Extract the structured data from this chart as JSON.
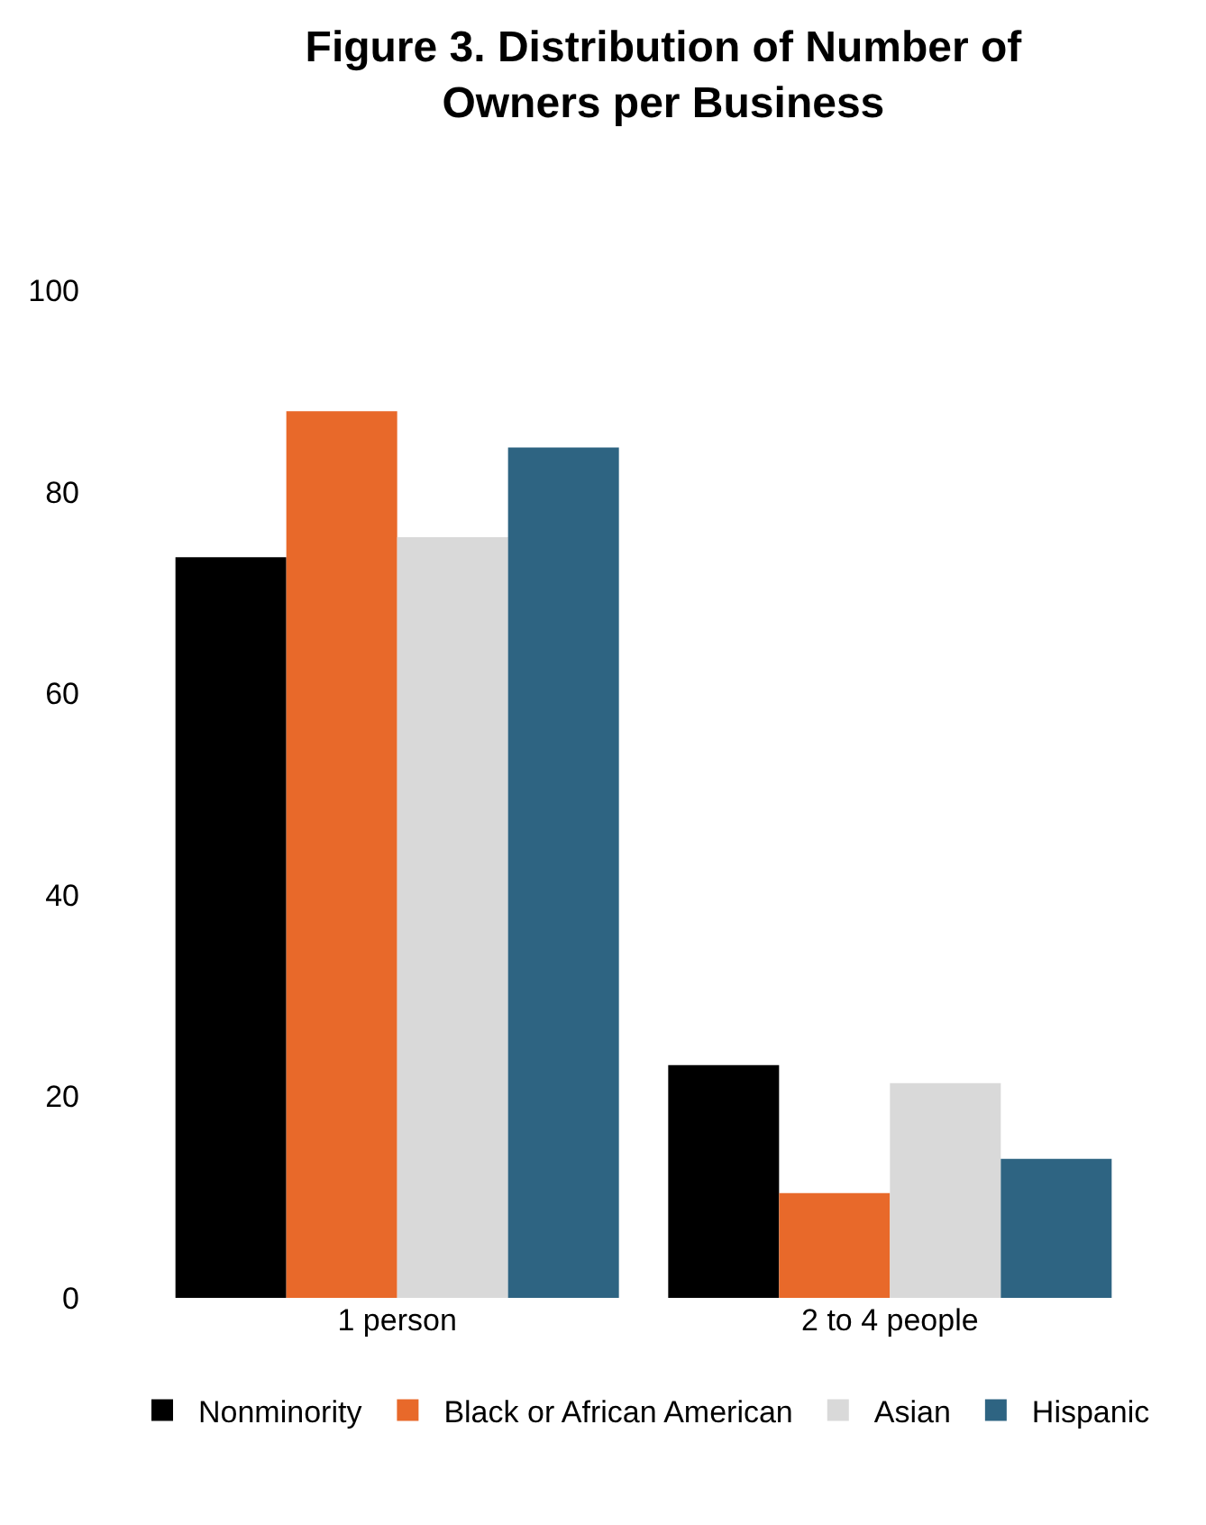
{
  "chart_data": {
    "type": "bar",
    "title": "Figure 3. Distribution of Number of Owners per Business",
    "categories": [
      "1 person",
      "2 to 4 people"
    ],
    "series": [
      {
        "name": "Nonminority",
        "color": "#000000",
        "values": [
          73.5,
          23.1
        ]
      },
      {
        "name": "Black or African American",
        "color": "#e8692a",
        "values": [
          88.0,
          10.4
        ]
      },
      {
        "name": "Asian",
        "color": "#d9d9d9",
        "values": [
          75.5,
          21.3
        ]
      },
      {
        "name": "Hispanic",
        "color": "#2e6482",
        "values": [
          84.4,
          13.8
        ]
      }
    ],
    "ylim": [
      0,
      100
    ],
    "yticks": [
      0,
      20,
      40,
      60,
      80,
      100
    ],
    "legend": "bottom"
  }
}
